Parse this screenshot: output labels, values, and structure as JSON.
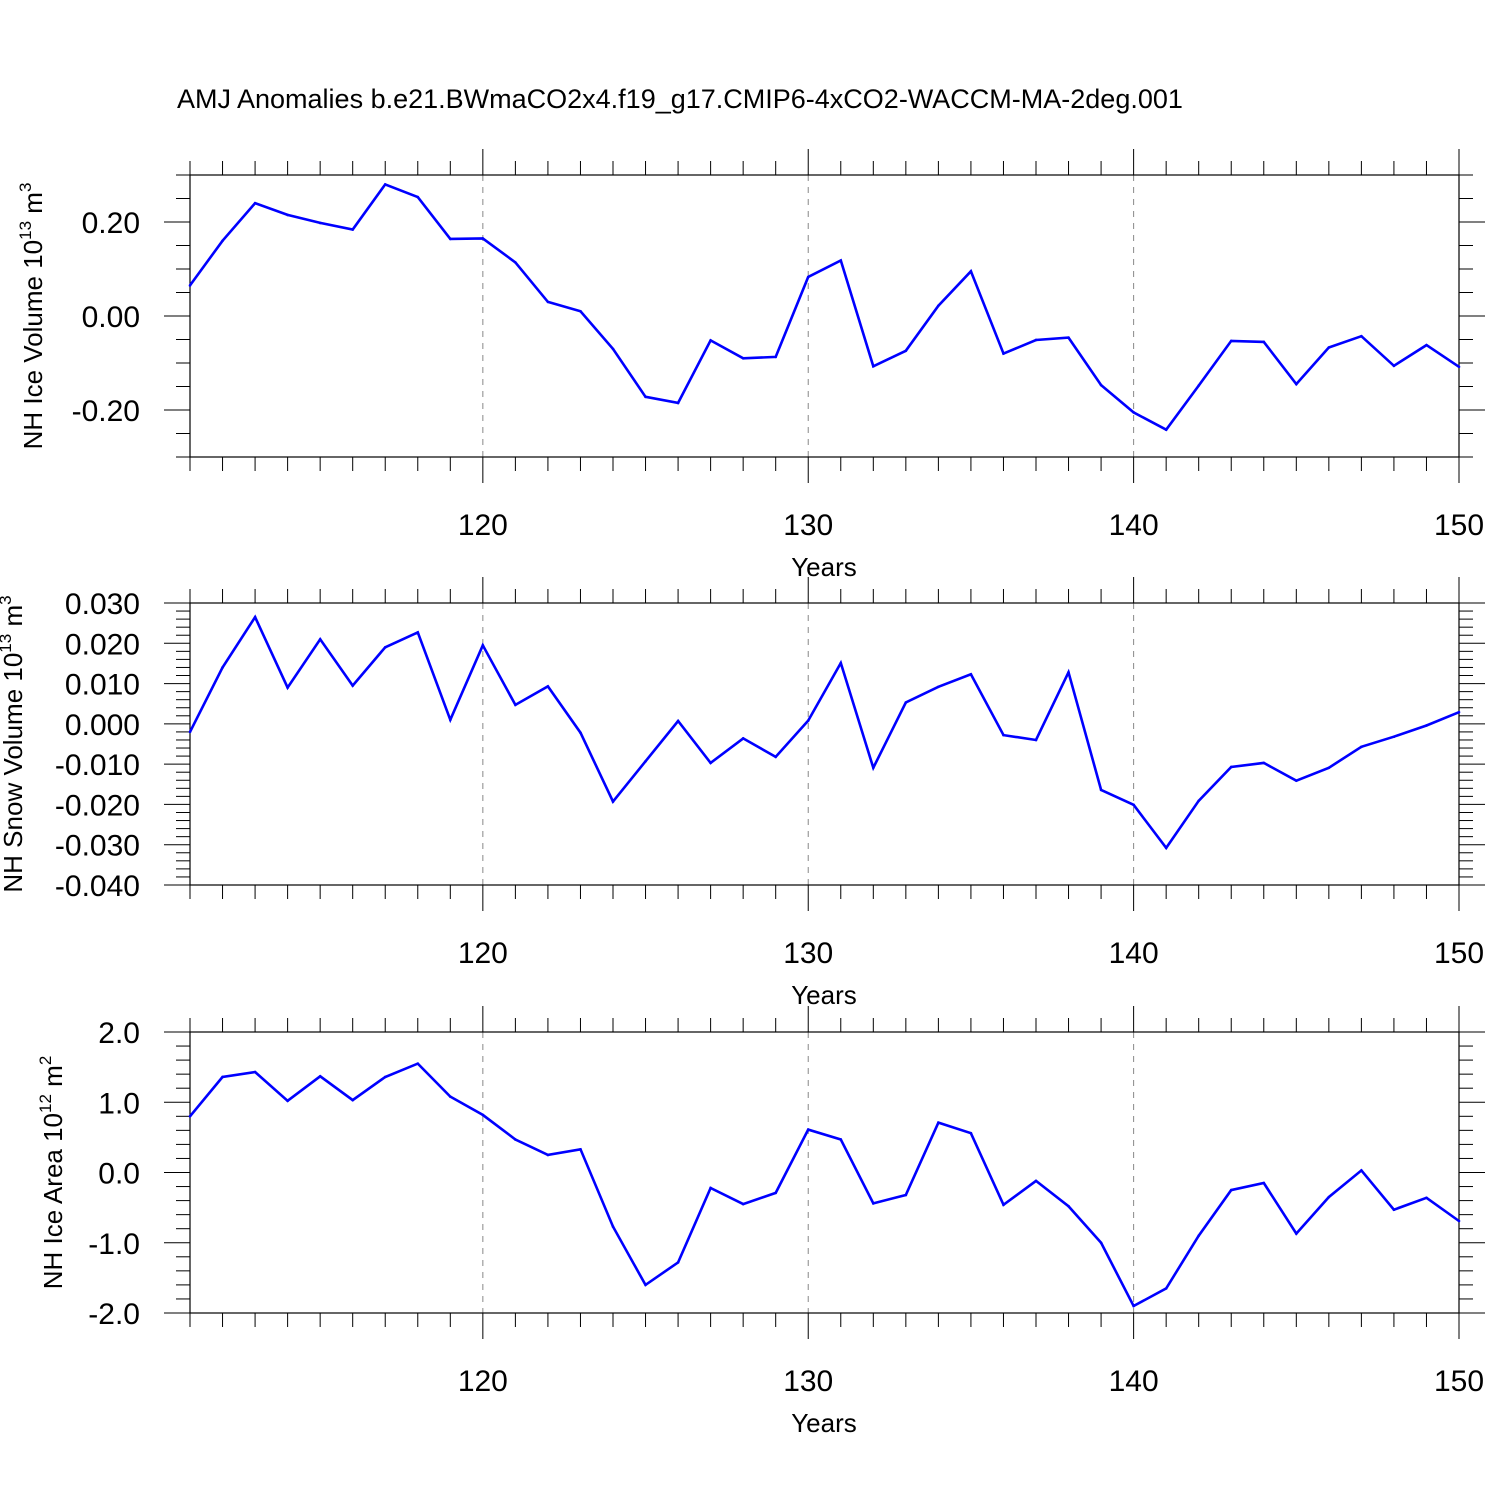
{
  "title": "AMJ Anomalies b.e21.BWmaCO2x4.f19_g17.CMIP6-4xCO2-WACCM-MA-2deg.001",
  "colors": {
    "line": "#0000ff",
    "axis": "#000000",
    "grid": "#888888"
  },
  "chart_data": [
    {
      "type": "line",
      "ylabel_main": "NH Ice Volume 10",
      "ylabel_exp": "13",
      "ylabel_unit": " m",
      "ylabel_unit_exp": "3",
      "xlabel": "Years",
      "xlim": [
        111,
        150
      ],
      "ylim": [
        -0.3,
        0.3
      ],
      "x_ticks": [
        120,
        130,
        140,
        150
      ],
      "x_tick_labels": [
        "120",
        "130",
        "140",
        "150"
      ],
      "y_ticks": [
        -0.2,
        0.0,
        0.2
      ],
      "y_tick_labels": [
        "-0.20",
        "0.00",
        "0.20"
      ],
      "y_minor_step": 0.05,
      "grid": "vertical dashed at major x ticks",
      "x": [
        111,
        112,
        113,
        114,
        115,
        116,
        117,
        118,
        119,
        120,
        121,
        122,
        123,
        124,
        125,
        126,
        127,
        128,
        129,
        130,
        131,
        132,
        133,
        134,
        135,
        136,
        137,
        138,
        139,
        140,
        141,
        142,
        143,
        144,
        145,
        146,
        147,
        148,
        149,
        150
      ],
      "y": [
        0.065,
        0.16,
        0.24,
        0.215,
        0.198,
        0.184,
        0.28,
        0.253,
        0.164,
        0.165,
        0.114,
        0.03,
        0.01,
        -0.07,
        -0.172,
        -0.185,
        -0.052,
        -0.09,
        -0.087,
        0.083,
        0.118,
        -0.107,
        -0.074,
        0.022,
        0.095,
        -0.08,
        -0.051,
        -0.046,
        -0.147,
        -0.205,
        -0.242,
        -0.148,
        -0.053,
        -0.055,
        -0.145,
        -0.067,
        -0.043,
        -0.106,
        -0.062,
        -0.108
      ]
    },
    {
      "type": "line",
      "ylabel_main": "NH Snow Volume 10",
      "ylabel_exp": "13",
      "ylabel_unit": " m",
      "ylabel_unit_exp": "3",
      "xlabel": "Years",
      "xlim": [
        111,
        150
      ],
      "ylim": [
        -0.04,
        0.03
      ],
      "x_ticks": [
        120,
        130,
        140,
        150
      ],
      "x_tick_labels": [
        "120",
        "130",
        "140",
        "150"
      ],
      "y_ticks": [
        -0.04,
        -0.03,
        -0.02,
        -0.01,
        0.0,
        0.01,
        0.02,
        0.03
      ],
      "y_tick_labels": [
        "-0.040",
        "-0.030",
        "-0.020",
        "-0.010",
        "0.000",
        "0.010",
        "0.020",
        "0.030"
      ],
      "y_minor_step": 0.002,
      "grid": "vertical dashed at major x ticks",
      "x": [
        111,
        112,
        113,
        114,
        115,
        116,
        117,
        118,
        119,
        120,
        121,
        122,
        123,
        124,
        125,
        126,
        127,
        128,
        129,
        130,
        131,
        132,
        133,
        134,
        135,
        136,
        137,
        138,
        139,
        140,
        141,
        142,
        143,
        144,
        145,
        146,
        147,
        148,
        149,
        150
      ],
      "y": [
        -0.002,
        0.014,
        0.0265,
        0.009,
        0.021,
        0.0095,
        0.019,
        0.0227,
        0.001,
        0.0195,
        0.0047,
        0.0093,
        -0.0022,
        -0.0193,
        -0.0093,
        0.0007,
        -0.0097,
        -0.0036,
        -0.0082,
        0.0008,
        0.0151,
        -0.0109,
        0.0053,
        0.0092,
        0.0123,
        -0.0028,
        -0.004,
        0.0128,
        -0.0164,
        -0.0201,
        -0.0308,
        -0.0191,
        -0.0107,
        -0.0097,
        -0.0141,
        -0.0109,
        -0.0057,
        -0.0032,
        -0.0004,
        0.0029
      ]
    },
    {
      "type": "line",
      "ylabel_main": "NH Ice Area 10",
      "ylabel_exp": "12",
      "ylabel_unit": " m",
      "ylabel_unit_exp": "2",
      "xlabel": "Years",
      "xlim": [
        111,
        150
      ],
      "ylim": [
        -2.0,
        2.0
      ],
      "x_ticks": [
        120,
        130,
        140,
        150
      ],
      "x_tick_labels": [
        "120",
        "130",
        "140",
        "150"
      ],
      "y_ticks": [
        -2.0,
        -1.0,
        0.0,
        1.0,
        2.0
      ],
      "y_tick_labels": [
        "-2.0",
        "-1.0",
        "0.0",
        "1.0",
        "2.0"
      ],
      "y_minor_step": 0.2,
      "grid": "vertical dashed at major x ticks",
      "x": [
        111,
        112,
        113,
        114,
        115,
        116,
        117,
        118,
        119,
        120,
        121,
        122,
        123,
        124,
        125,
        126,
        127,
        128,
        129,
        130,
        131,
        132,
        133,
        134,
        135,
        136,
        137,
        138,
        139,
        140,
        141,
        142,
        143,
        144,
        145,
        146,
        147,
        148,
        149,
        150
      ],
      "y": [
        0.8,
        1.36,
        1.43,
        1.02,
        1.37,
        1.03,
        1.36,
        1.55,
        1.08,
        0.82,
        0.47,
        0.25,
        0.33,
        -0.77,
        -1.6,
        -1.28,
        -0.22,
        -0.45,
        -0.29,
        0.61,
        0.47,
        -0.44,
        -0.32,
        0.71,
        0.56,
        -0.46,
        -0.12,
        -0.48,
        -1.0,
        -1.9,
        -1.65,
        -0.9,
        -0.25,
        -0.15,
        -0.87,
        -0.35,
        0.03,
        -0.53,
        -0.36,
        -0.69
      ]
    }
  ]
}
